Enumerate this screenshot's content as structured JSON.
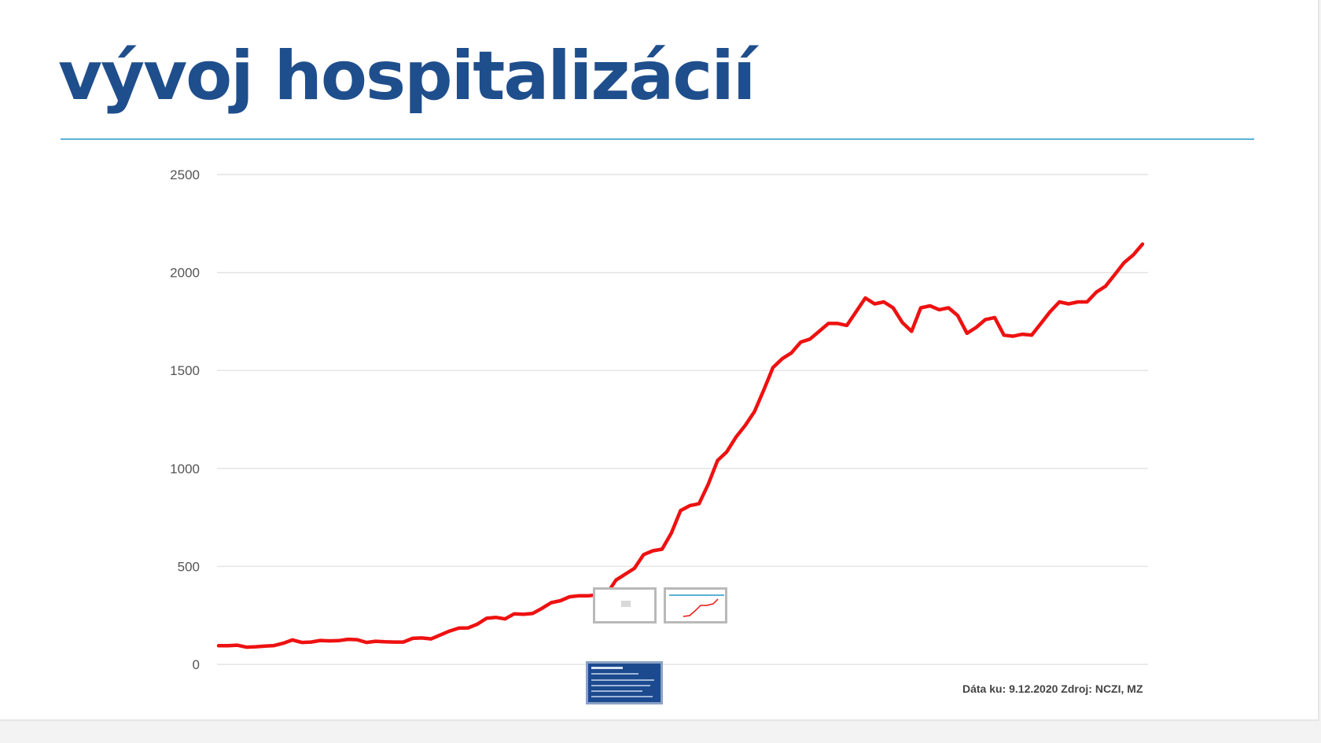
{
  "slide": {
    "title": "vývoj hospitalizácií",
    "source_note": "Dáta ku: 9.12.2020 Zdroj: NCZI, MZ"
  },
  "colors": {
    "title": "#1f4e8c",
    "rule": "#5ab1d6",
    "series": "#ee1111",
    "grid": "#e4e4e4"
  },
  "chart_data": {
    "type": "line",
    "title": "",
    "xlabel": "",
    "ylabel": "",
    "ylim": [
      0,
      2500
    ],
    "yticks": [
      0,
      500,
      1000,
      1500,
      2000,
      2500
    ],
    "grid": true,
    "legend": "none",
    "series": [
      {
        "color": "#ee1111",
        "values": [
          95,
          95,
          98,
          88,
          90,
          93,
          96,
          108,
          125,
          112,
          114,
          122,
          120,
          121,
          128,
          126,
          112,
          118,
          115,
          114,
          114,
          133,
          135,
          130,
          150,
          170,
          185,
          186,
          205,
          235,
          240,
          232,
          258,
          256,
          260,
          286,
          315,
          325,
          345,
          350,
          350,
          355,
          358,
          430,
          460,
          490,
          560,
          580,
          588,
          670,
          785,
          810,
          820,
          920,
          1040,
          1085,
          1160,
          1220,
          1290,
          1400,
          1515,
          1560,
          1590,
          1645,
          1660,
          1700,
          1740,
          1740,
          1730,
          1800,
          1870,
          1840,
          1850,
          1820,
          1745,
          1700,
          1820,
          1830,
          1810,
          1820,
          1780,
          1690,
          1720,
          1760,
          1770,
          1680,
          1675,
          1685,
          1680,
          1740,
          1800,
          1850,
          1840,
          1850,
          1850,
          1900,
          1930,
          1990,
          2050,
          2090,
          2145
        ]
      }
    ]
  }
}
